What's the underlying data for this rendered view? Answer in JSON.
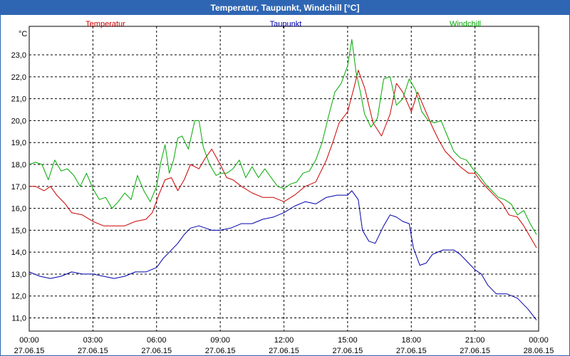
{
  "window": {
    "title": "Temperatur, Taupunkt, Windchill [°C]"
  },
  "chart_data": {
    "type": "line",
    "title": "Temperatur, Taupunkt, Windchill [°C]",
    "ylabel": "°C",
    "xlabel": "",
    "grid": true,
    "legend_position": "top",
    "ylim": [
      10.4,
      24.3
    ],
    "xlim": [
      0,
      24
    ],
    "yticks": [
      11.0,
      12.0,
      13.0,
      14.0,
      15.0,
      16.0,
      17.0,
      18.0,
      19.0,
      20.0,
      21.0,
      22.0,
      23.0
    ],
    "ytick_labels": [
      "11,0",
      "12,0",
      "13,0",
      "14,0",
      "15,0",
      "16,0",
      "17,0",
      "18,0",
      "19,0",
      "20,0",
      "21,0",
      "22,0",
      "23,0"
    ],
    "xticks": [
      0,
      3,
      6,
      9,
      12,
      15,
      18,
      21,
      24
    ],
    "xtick_labels": [
      {
        "time": "00:00",
        "date": "27.06.15"
      },
      {
        "time": "03:00",
        "date": "27.06.15"
      },
      {
        "time": "06:00",
        "date": "27.06.15"
      },
      {
        "time": "09:00",
        "date": "27.06.15"
      },
      {
        "time": "12:00",
        "date": "27.06.15"
      },
      {
        "time": "15:00",
        "date": "27.06.15"
      },
      {
        "time": "18:00",
        "date": "27.06.15"
      },
      {
        "time": "21:00",
        "date": "27.06.15"
      },
      {
        "time": "00:00",
        "date": "28.06.15"
      }
    ],
    "series": [
      {
        "name": "Temperatur",
        "color": "#cc0000",
        "x": [
          0,
          0.3,
          0.7,
          1,
          1.3,
          1.7,
          2,
          2.5,
          3,
          3.5,
          4,
          4.5,
          5,
          5.5,
          5.8,
          6.1,
          6.4,
          6.7,
          7,
          7.3,
          7.6,
          8,
          8.3,
          8.6,
          9,
          9.3,
          9.6,
          10,
          10.5,
          11,
          11.5,
          12,
          12.5,
          13,
          13.5,
          14,
          14.3,
          14.6,
          15,
          15.3,
          15.5,
          15.8,
          16.2,
          16.6,
          17,
          17.3,
          17.6,
          18,
          18.3,
          18.6,
          19,
          19.3,
          19.6,
          20,
          20.3,
          20.7,
          21,
          21.3,
          21.6,
          22,
          22.3,
          22.6,
          23,
          23.3,
          23.6,
          23.9
        ],
        "y": [
          17,
          17,
          16.8,
          17,
          16.6,
          16.2,
          15.8,
          15.7,
          15.4,
          15.2,
          15.2,
          15.2,
          15.4,
          15.5,
          15.8,
          16.6,
          17.3,
          17.4,
          16.8,
          17.3,
          18,
          17.8,
          18.3,
          18.7,
          18,
          17.4,
          17.3,
          17,
          16.7,
          16.5,
          16.5,
          16.3,
          16.6,
          17,
          17.2,
          18.2,
          19,
          19.9,
          20.4,
          21.5,
          22.3,
          21.5,
          19.9,
          19.3,
          20.3,
          21.7,
          21.3,
          20.4,
          21.3,
          20.6,
          19.7,
          19.1,
          18.6,
          18.2,
          17.9,
          17.6,
          17.6,
          17.2,
          16.9,
          16.5,
          16.2,
          15.7,
          15.6,
          15.2,
          14.7,
          14.2
        ]
      },
      {
        "name": "Taupunkt",
        "color": "#0000aa",
        "x": [
          0,
          0.5,
          1,
          1.5,
          2,
          2.5,
          3,
          3.5,
          4,
          4.5,
          5,
          5.5,
          6,
          6.3,
          6.6,
          7,
          7.3,
          7.6,
          8,
          8.3,
          8.6,
          9,
          9.5,
          10,
          10.5,
          11,
          11.5,
          12,
          12.5,
          13,
          13.5,
          14,
          14.5,
          15,
          15.2,
          15.5,
          15.7,
          16,
          16.3,
          16.7,
          17,
          17.3,
          17.6,
          17.9,
          18.1,
          18.4,
          18.7,
          19,
          19.5,
          20,
          20.3,
          20.7,
          21,
          21.3,
          21.6,
          22,
          22.5,
          23,
          23.5,
          23.9
        ],
        "y": [
          13.1,
          12.9,
          12.8,
          12.9,
          13.1,
          13,
          13,
          12.9,
          12.8,
          12.9,
          13.1,
          13.1,
          13.3,
          13.7,
          14,
          14.4,
          14.8,
          15.1,
          15.2,
          15.1,
          15,
          15,
          15.1,
          15.3,
          15.3,
          15.5,
          15.6,
          15.8,
          16.1,
          16.3,
          16.2,
          16.5,
          16.6,
          16.6,
          16.8,
          16.4,
          15,
          14.5,
          14.4,
          15.2,
          15.7,
          15.6,
          15.4,
          15.3,
          14.2,
          13.4,
          13.5,
          13.9,
          14.1,
          14.1,
          13.9,
          13.5,
          13.2,
          13,
          12.5,
          12.1,
          12.1,
          11.9,
          11.4,
          10.9
        ]
      },
      {
        "name": "Windchill",
        "color": "#00aa00",
        "x": [
          0,
          0.3,
          0.6,
          0.9,
          1.2,
          1.5,
          1.8,
          2.1,
          2.4,
          2.7,
          3,
          3.3,
          3.6,
          3.9,
          4.2,
          4.5,
          4.8,
          5.1,
          5.4,
          5.7,
          6,
          6.2,
          6.4,
          6.6,
          6.8,
          7,
          7.2,
          7.5,
          7.8,
          8,
          8.2,
          8.5,
          8.8,
          9,
          9.3,
          9.6,
          9.9,
          10.2,
          10.5,
          10.8,
          11.1,
          11.4,
          11.7,
          12,
          12.3,
          12.6,
          12.9,
          13.2,
          13.5,
          13.8,
          14.1,
          14.4,
          14.7,
          15,
          15.2,
          15.4,
          15.6,
          15.8,
          16.1,
          16.4,
          16.7,
          17,
          17.3,
          17.6,
          17.9,
          18.2,
          18.5,
          18.8,
          19.1,
          19.4,
          19.7,
          20,
          20.3,
          20.6,
          20.9,
          21.2,
          21.5,
          21.8,
          22.1,
          22.4,
          22.7,
          23,
          23.3,
          23.6,
          23.9
        ],
        "y": [
          18,
          18.1,
          18,
          17.3,
          18.2,
          17.7,
          17.8,
          17.5,
          17,
          17.6,
          16.9,
          16.4,
          16.5,
          16,
          16.3,
          16.7,
          16.4,
          17.5,
          16.8,
          16.3,
          17,
          18.1,
          18.9,
          17.6,
          18.2,
          19.2,
          19.3,
          18.7,
          20,
          20,
          18.8,
          18,
          17.5,
          17.6,
          17.6,
          17.8,
          18.2,
          17.4,
          17.9,
          17.4,
          17.8,
          17.4,
          17,
          16.9,
          17.1,
          17.2,
          17.6,
          17.7,
          18.2,
          19,
          20.2,
          21.3,
          21.7,
          22.5,
          23.7,
          22.2,
          21.3,
          20.3,
          19.7,
          20.1,
          21.9,
          22,
          20.7,
          21,
          21.9,
          21.4,
          20.4,
          20,
          19.9,
          20,
          19.3,
          18.6,
          18.3,
          18.2,
          17.8,
          17.5,
          17.1,
          16.8,
          16.5,
          16.4,
          16.2,
          15.7,
          15.9,
          15.3,
          14.8
        ]
      }
    ]
  }
}
